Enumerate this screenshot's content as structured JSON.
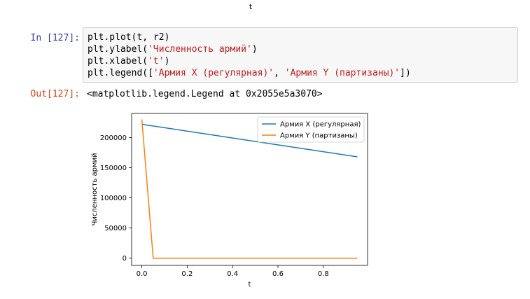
{
  "top_label": "t",
  "cell": {
    "in_prompt": "In [127]:",
    "out_prompt": "Out[127]:",
    "code": [
      {
        "pre": "plt.plot(t, r2)",
        "str": "",
        "post": ""
      },
      {
        "pre": "plt.ylabel(",
        "str": "'Численность армий'",
        "post": ")"
      },
      {
        "pre": "plt.xlabel(",
        "str": "'t'",
        "post": ")"
      },
      {
        "pre": "plt.legend([",
        "str": "'Армия X (регулярная)'",
        "mid": ", ",
        "str2": "'Армия Y (партизаны)'",
        "post": "])"
      }
    ],
    "output_text": "<matplotlib.legend.Legend at 0x2055e5a3070>"
  },
  "chart_data": {
    "type": "line",
    "xlabel": "t",
    "ylabel": "Численность армий",
    "xlim": [
      -0.045,
      0.995
    ],
    "ylim": [
      -12000,
      240000
    ],
    "x_ticks": [
      0.0,
      0.2,
      0.4,
      0.6,
      0.8
    ],
    "x_tick_labels": [
      "0.0",
      "0.2",
      "0.4",
      "0.6",
      "0.8"
    ],
    "y_ticks": [
      0,
      50000,
      100000,
      150000,
      200000
    ],
    "y_tick_labels": [
      "0",
      "50000",
      "100000",
      "150000",
      "200000"
    ],
    "legend_position": "top-right",
    "series": [
      {
        "name": "Армия X (регулярная)",
        "color": "#1f77b4",
        "x": [
          0.0,
          0.95
        ],
        "y": [
          222000,
          168000
        ]
      },
      {
        "name": "Армия Y (партизаны)",
        "color": "#ff7f0e",
        "x": [
          0.0,
          0.05,
          0.95
        ],
        "y": [
          230000,
          0,
          0
        ]
      }
    ]
  }
}
